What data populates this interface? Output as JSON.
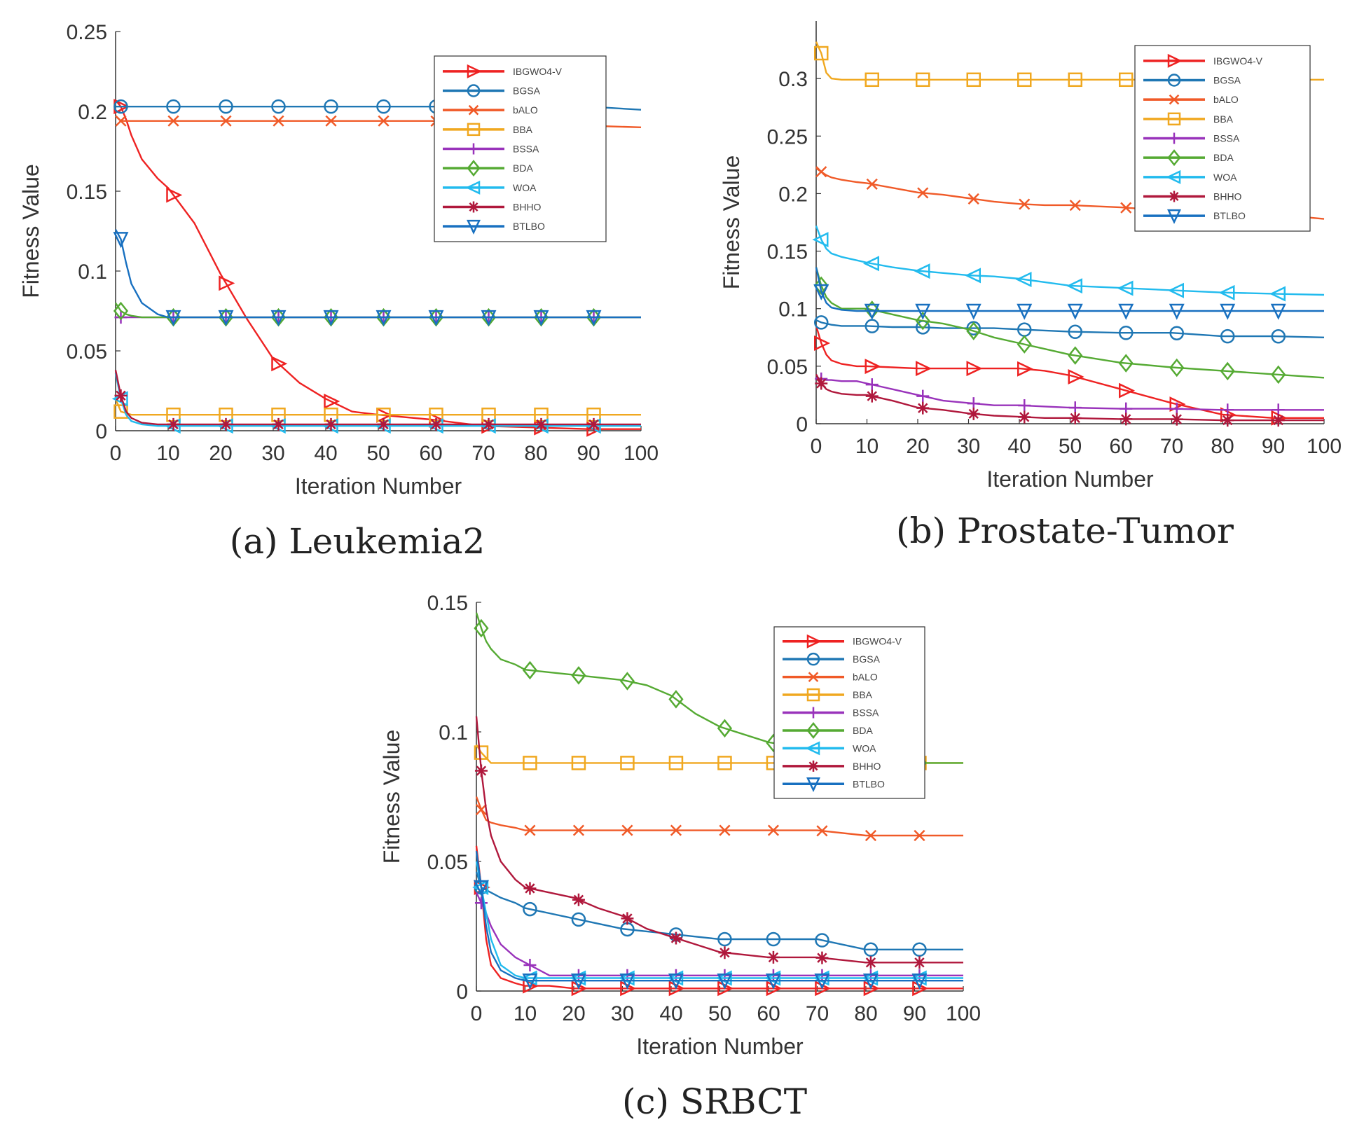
{
  "legend": [
    "IBGWO4-V",
    "BGSA",
    "bALO",
    "BBA",
    "BSSA",
    "BDA",
    "WOA",
    "BHHO",
    "BTLBO"
  ],
  "series_styles": [
    {
      "name": "IBGWO4-V",
      "color": "#ee2222",
      "marker": "tri-right"
    },
    {
      "name": "BGSA",
      "color": "#1f77b4",
      "marker": "circle"
    },
    {
      "name": "bALO",
      "color": "#f05a28",
      "marker": "x"
    },
    {
      "name": "BBA",
      "color": "#f0a820",
      "marker": "square"
    },
    {
      "name": "BSSA",
      "color": "#9933bb",
      "marker": "plus"
    },
    {
      "name": "BDA",
      "color": "#55aa33",
      "marker": "diamond"
    },
    {
      "name": "WOA",
      "color": "#22bbee",
      "marker": "tri-left"
    },
    {
      "name": "BHHO",
      "color": "#b0183c",
      "marker": "star"
    },
    {
      "name": "BTLBO",
      "color": "#1870c0",
      "marker": "tri-down"
    }
  ],
  "chart_data": [
    {
      "type": "line",
      "caption": "(a) Leukemia2",
      "xlabel": "Iteration Number",
      "ylabel": "Fitness Value",
      "xlim": [
        0,
        100
      ],
      "ylim": [
        0,
        0.25
      ],
      "xticks": [
        0,
        10,
        20,
        30,
        40,
        50,
        60,
        70,
        80,
        90,
        100
      ],
      "yticks": [
        0,
        0.05,
        0.1,
        0.15,
        0.2,
        0.25
      ],
      "ytick_labels": [
        "0",
        "0.05",
        "0.1",
        "0.15",
        "0.2",
        "0.25"
      ],
      "x": [
        0,
        1,
        2,
        3,
        5,
        8,
        10,
        15,
        20,
        25,
        30,
        35,
        40,
        45,
        50,
        60,
        70,
        80,
        90,
        100
      ],
      "series": [
        {
          "name": "IBGWO4-V",
          "values": [
            0.207,
            0.203,
            0.195,
            0.185,
            0.17,
            0.158,
            0.152,
            0.13,
            0.098,
            0.07,
            0.045,
            0.03,
            0.02,
            0.012,
            0.01,
            0.007,
            0.003,
            0.002,
            0.001,
            0.001
          ]
        },
        {
          "name": "BGSA",
          "values": [
            0.203,
            0.203,
            0.203,
            0.203,
            0.203,
            0.203,
            0.203,
            0.203,
            0.203,
            0.203,
            0.203,
            0.203,
            0.203,
            0.203,
            0.203,
            0.203,
            0.203,
            0.203,
            0.203,
            0.201
          ]
        },
        {
          "name": "bALO",
          "values": [
            0.197,
            0.194,
            0.194,
            0.194,
            0.194,
            0.194,
            0.194,
            0.194,
            0.194,
            0.194,
            0.194,
            0.194,
            0.194,
            0.194,
            0.194,
            0.194,
            0.193,
            0.192,
            0.191,
            0.19
          ]
        },
        {
          "name": "BBA",
          "values": [
            0.02,
            0.012,
            0.011,
            0.01,
            0.01,
            0.01,
            0.01,
            0.01,
            0.01,
            0.01,
            0.01,
            0.01,
            0.01,
            0.01,
            0.01,
            0.01,
            0.01,
            0.01,
            0.01,
            0.01
          ]
        },
        {
          "name": "BSSA",
          "values": [
            0.071,
            0.071,
            0.071,
            0.071,
            0.071,
            0.071,
            0.071,
            0.071,
            0.071,
            0.071,
            0.071,
            0.071,
            0.071,
            0.071,
            0.071,
            0.071,
            0.071,
            0.071,
            0.071,
            0.071
          ]
        },
        {
          "name": "BDA",
          "values": [
            0.08,
            0.075,
            0.073,
            0.072,
            0.071,
            0.071,
            0.071,
            0.071,
            0.071,
            0.071,
            0.071,
            0.071,
            0.071,
            0.071,
            0.071,
            0.071,
            0.071,
            0.071,
            0.071,
            0.071
          ]
        },
        {
          "name": "WOA",
          "values": [
            0.036,
            0.02,
            0.01,
            0.006,
            0.004,
            0.003,
            0.003,
            0.003,
            0.003,
            0.003,
            0.003,
            0.003,
            0.003,
            0.003,
            0.003,
            0.003,
            0.003,
            0.003,
            0.003,
            0.003
          ]
        },
        {
          "name": "BHHO",
          "values": [
            0.038,
            0.022,
            0.012,
            0.008,
            0.005,
            0.004,
            0.004,
            0.004,
            0.004,
            0.004,
            0.004,
            0.004,
            0.004,
            0.004,
            0.004,
            0.004,
            0.004,
            0.004,
            0.004,
            0.004
          ]
        },
        {
          "name": "BTLBO",
          "values": [
            0.126,
            0.12,
            0.105,
            0.092,
            0.08,
            0.073,
            0.071,
            0.071,
            0.071,
            0.071,
            0.071,
            0.071,
            0.071,
            0.071,
            0.071,
            0.071,
            0.071,
            0.071,
            0.071,
            0.071
          ]
        }
      ]
    },
    {
      "type": "line",
      "caption": "(b) Prostate-Tumor",
      "xlabel": "Iteration Number",
      "ylabel": "Fitness Value",
      "xlim": [
        0,
        100
      ],
      "ylim": [
        0,
        0.35
      ],
      "xticks": [
        0,
        10,
        20,
        30,
        40,
        50,
        60,
        70,
        80,
        90,
        100
      ],
      "yticks": [
        0,
        0.05,
        0.1,
        0.15,
        0.2,
        0.25,
        0.3
      ],
      "ytick_labels": [
        "0",
        "0.05",
        "0.1",
        "0.15",
        "0.2",
        "0.25",
        "0.3"
      ],
      "x": [
        0,
        1,
        2,
        3,
        5,
        8,
        10,
        15,
        20,
        25,
        30,
        35,
        40,
        45,
        50,
        60,
        70,
        80,
        90,
        100
      ],
      "series": [
        {
          "name": "IBGWO4-V",
          "values": [
            0.085,
            0.07,
            0.06,
            0.055,
            0.052,
            0.05,
            0.05,
            0.049,
            0.048,
            0.048,
            0.048,
            0.048,
            0.048,
            0.046,
            0.042,
            0.03,
            0.018,
            0.008,
            0.005,
            0.005
          ]
        },
        {
          "name": "BGSA",
          "values": [
            0.09,
            0.088,
            0.087,
            0.086,
            0.085,
            0.085,
            0.085,
            0.084,
            0.084,
            0.083,
            0.083,
            0.083,
            0.082,
            0.081,
            0.08,
            0.079,
            0.079,
            0.076,
            0.076,
            0.075
          ]
        },
        {
          "name": "bALO",
          "values": [
            0.222,
            0.219,
            0.216,
            0.214,
            0.212,
            0.21,
            0.209,
            0.205,
            0.201,
            0.199,
            0.196,
            0.193,
            0.191,
            0.19,
            0.19,
            0.188,
            0.185,
            0.183,
            0.182,
            0.178
          ]
        },
        {
          "name": "BBA",
          "values": [
            0.332,
            0.322,
            0.305,
            0.3,
            0.299,
            0.299,
            0.299,
            0.299,
            0.299,
            0.299,
            0.299,
            0.299,
            0.299,
            0.299,
            0.299,
            0.299,
            0.299,
            0.299,
            0.299,
            0.299
          ]
        },
        {
          "name": "BSSA",
          "values": [
            0.04,
            0.039,
            0.038,
            0.038,
            0.037,
            0.037,
            0.035,
            0.03,
            0.025,
            0.02,
            0.018,
            0.016,
            0.016,
            0.015,
            0.014,
            0.013,
            0.013,
            0.012,
            0.012,
            0.012
          ]
        },
        {
          "name": "BDA",
          "values": [
            0.136,
            0.12,
            0.11,
            0.105,
            0.1,
            0.1,
            0.1,
            0.095,
            0.09,
            0.087,
            0.082,
            0.075,
            0.07,
            0.065,
            0.06,
            0.053,
            0.049,
            0.046,
            0.043,
            0.04
          ]
        },
        {
          "name": "WOA",
          "values": [
            0.172,
            0.16,
            0.152,
            0.148,
            0.145,
            0.142,
            0.14,
            0.136,
            0.133,
            0.131,
            0.129,
            0.128,
            0.126,
            0.123,
            0.12,
            0.118,
            0.116,
            0.114,
            0.113,
            0.112
          ]
        },
        {
          "name": "BHHO",
          "values": [
            0.043,
            0.035,
            0.03,
            0.028,
            0.026,
            0.025,
            0.025,
            0.02,
            0.014,
            0.012,
            0.009,
            0.007,
            0.006,
            0.005,
            0.005,
            0.004,
            0.004,
            0.003,
            0.003,
            0.003
          ]
        },
        {
          "name": "BTLBO",
          "values": [
            0.136,
            0.115,
            0.105,
            0.101,
            0.099,
            0.098,
            0.098,
            0.098,
            0.098,
            0.098,
            0.098,
            0.098,
            0.098,
            0.098,
            0.098,
            0.098,
            0.098,
            0.098,
            0.098,
            0.098
          ]
        }
      ]
    },
    {
      "type": "line",
      "caption": "(c) SRBCT",
      "xlabel": "Iteration Number",
      "ylabel": "Fitness Value",
      "xlim": [
        0,
        100
      ],
      "ylim": [
        0,
        0.15
      ],
      "xticks": [
        0,
        10,
        20,
        30,
        40,
        50,
        60,
        70,
        80,
        90,
        100
      ],
      "yticks": [
        0,
        0.05,
        0.1,
        0.15
      ],
      "ytick_labels": [
        "0",
        "0.05",
        "0.1",
        "0.15"
      ],
      "x": [
        0,
        1,
        2,
        3,
        5,
        8,
        10,
        15,
        20,
        25,
        30,
        35,
        40,
        45,
        50,
        60,
        70,
        80,
        90,
        100
      ],
      "series": [
        {
          "name": "IBGWO4-V",
          "values": [
            0.056,
            0.04,
            0.02,
            0.01,
            0.005,
            0.003,
            0.002,
            0.002,
            0.001,
            0.001,
            0.001,
            0.001,
            0.001,
            0.001,
            0.001,
            0.001,
            0.001,
            0.001,
            0.001,
            0.001
          ]
        },
        {
          "name": "BGSA",
          "values": [
            0.046,
            0.04,
            0.039,
            0.038,
            0.036,
            0.034,
            0.032,
            0.03,
            0.028,
            0.026,
            0.024,
            0.023,
            0.022,
            0.021,
            0.02,
            0.02,
            0.02,
            0.016,
            0.016,
            0.016
          ]
        },
        {
          "name": "bALO",
          "values": [
            0.075,
            0.07,
            0.066,
            0.065,
            0.064,
            0.063,
            0.062,
            0.062,
            0.062,
            0.062,
            0.062,
            0.062,
            0.062,
            0.062,
            0.062,
            0.062,
            0.062,
            0.06,
            0.06,
            0.06
          ]
        },
        {
          "name": "BBA",
          "values": [
            0.095,
            0.092,
            0.09,
            0.088,
            0.088,
            0.088,
            0.088,
            0.088,
            0.088,
            0.088,
            0.088,
            0.088,
            0.088,
            0.088,
            0.088,
            0.088,
            0.088,
            0.088,
            0.088,
            0.088
          ]
        },
        {
          "name": "BSSA",
          "values": [
            0.038,
            0.034,
            0.03,
            0.025,
            0.018,
            0.013,
            0.011,
            0.006,
            0.006,
            0.006,
            0.006,
            0.006,
            0.006,
            0.006,
            0.006,
            0.006,
            0.006,
            0.006,
            0.006,
            0.006
          ]
        },
        {
          "name": "BDA",
          "values": [
            0.146,
            0.14,
            0.135,
            0.132,
            0.128,
            0.126,
            0.124,
            0.123,
            0.122,
            0.121,
            0.12,
            0.118,
            0.114,
            0.107,
            0.102,
            0.096,
            0.093,
            0.09,
            0.088,
            0.088
          ]
        },
        {
          "name": "WOA",
          "values": [
            0.05,
            0.04,
            0.03,
            0.02,
            0.01,
            0.006,
            0.005,
            0.005,
            0.005,
            0.005,
            0.005,
            0.005,
            0.005,
            0.005,
            0.005,
            0.005,
            0.005,
            0.005,
            0.005,
            0.005
          ]
        },
        {
          "name": "BHHO",
          "values": [
            0.106,
            0.085,
            0.07,
            0.06,
            0.05,
            0.043,
            0.04,
            0.038,
            0.036,
            0.032,
            0.029,
            0.024,
            0.021,
            0.018,
            0.015,
            0.013,
            0.013,
            0.011,
            0.011,
            0.011
          ]
        },
        {
          "name": "BTLBO",
          "values": [
            0.054,
            0.04,
            0.025,
            0.015,
            0.008,
            0.005,
            0.004,
            0.004,
            0.004,
            0.004,
            0.004,
            0.004,
            0.004,
            0.004,
            0.004,
            0.004,
            0.004,
            0.004,
            0.004,
            0.004
          ]
        }
      ]
    }
  ]
}
